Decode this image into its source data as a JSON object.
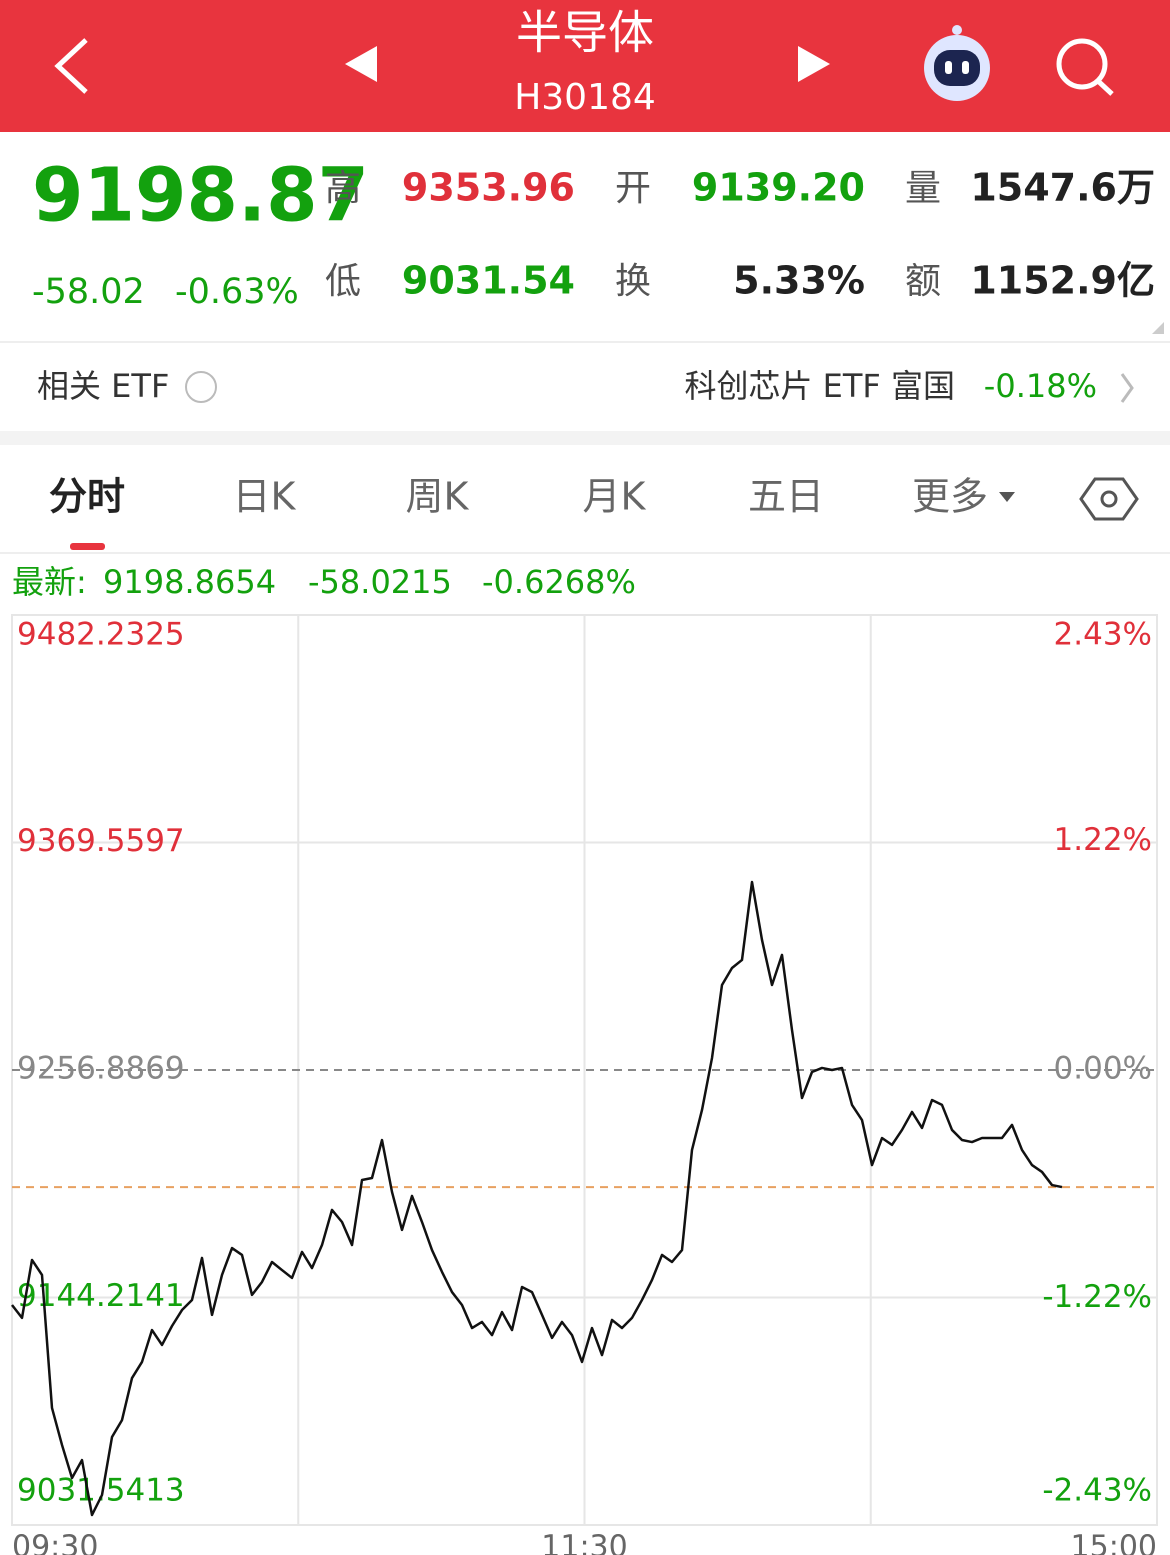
{
  "header": {
    "title": "半导体",
    "code": "H30184"
  },
  "quote": {
    "price": "9198.87",
    "change": "-58.02",
    "pct": "-0.63%",
    "items": [
      {
        "label": "高",
        "value": "9353.96"
      },
      {
        "label": "开",
        "value": "9139.20"
      },
      {
        "label": "量",
        "value": "1547.6万"
      },
      {
        "label": "低",
        "value": "9031.54"
      },
      {
        "label": "换",
        "value": "5.33%"
      },
      {
        "label": "额",
        "value": "1152.9亿"
      }
    ]
  },
  "etf": {
    "label": "相关 ETF",
    "name": "科创芯片 ETF 富国",
    "change": "-0.18%"
  },
  "tabs": [
    "分时",
    "日K",
    "周K",
    "月K",
    "五日",
    "更多"
  ],
  "chart_data": {
    "type": "line",
    "latest": {
      "label": "最新:",
      "price": 9198.8654,
      "change": -58.0215,
      "pct": "-0.6268%"
    },
    "color": "#111111",
    "values": [
      9140.5,
      9134.1,
      9162.8,
      9155.4,
      9089.5,
      9071.2,
      9054.8,
      9063.7,
      9036.5,
      9046.4,
      9075.1,
      9083.5,
      9104.3,
      9112.3,
      9128.1,
      9120.7,
      9130.1,
      9138.0,
      9143.0,
      9163.8,
      9135.6,
      9155.4,
      9168.7,
      9165.3,
      9145.5,
      9151.9,
      9161.8,
      9157.8,
      9153.9,
      9166.8,
      9158.8,
      9170.2,
      9187.6,
      9181.6,
      9170.2,
      9202.4,
      9203.4,
      9222.2,
      9196.5,
      9177.7,
      9194.5,
      9181.6,
      9167.7,
      9156.9,
      9146.9,
      9140.5,
      9129.1,
      9132.1,
      9125.6,
      9137.0,
      9128.1,
      9149.4,
      9146.9,
      9135.6,
      9124.2,
      9132.1,
      9125.6,
      9112.3,
      9129.1,
      9115.7,
      9133.1,
      9129.1,
      9134.1,
      9143.0,
      9152.9,
      9165.3,
      9161.8,
      9167.7,
      9217.3,
      9237.1,
      9262.8,
      9299.0,
      9307.4,
      9311.4,
      9350.0,
      9321.3,
      9299.0,
      9313.9,
      9276.7,
      9243.0,
      9255.9,
      9257.9,
      9256.9,
      9257.9,
      9239.6,
      9232.1,
      9209.8,
      9223.2,
      9219.8,
      9227.2,
      9236.1,
      9228.2,
      9242.0,
      9239.6,
      9227.2,
      9222.2,
      9221.2,
      9223.2,
      9223.2,
      9223.2,
      9229.7,
      9217.3,
      9209.8,
      9206.4,
      9199.9,
      9198.9
    ],
    "ylim": [
      9031.5413,
      9482.2325
    ],
    "yticks": [
      9482.2325,
      9369.5597,
      9256.8869,
      9144.2141,
      9031.5413
    ],
    "y2lim": [
      -2.43,
      2.43
    ],
    "y2ticks": [
      {
        "value": 2.43,
        "label": "2.43%"
      },
      {
        "value": 1.22,
        "label": "1.22%"
      },
      {
        "value": 0,
        "label": "0.00%"
      },
      {
        "value": -1.22,
        "label": "-1.22%"
      },
      {
        "value": -2.43,
        "label": "-2.43%"
      }
    ],
    "xtick_labels": [
      "09:30",
      "11:30",
      "15:00"
    ]
  }
}
